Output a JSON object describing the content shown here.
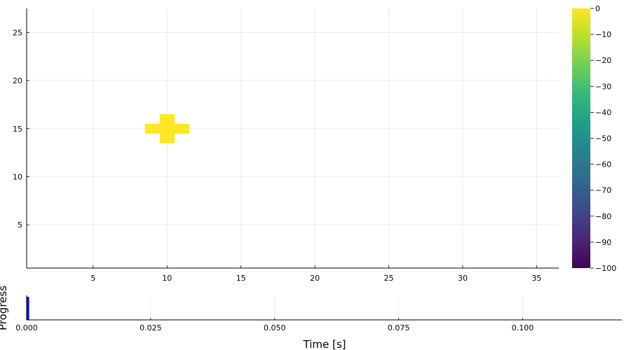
{
  "chart_data": [
    {
      "type": "heatmap",
      "title": "",
      "xlabel": "",
      "ylabel": "",
      "xlim": [
        0.5,
        36.5
      ],
      "ylim": [
        0.5,
        27.5
      ],
      "xticks": [
        5,
        10,
        15,
        20,
        25,
        30,
        35
      ],
      "yticks": [
        5,
        10,
        15,
        20,
        25
      ],
      "grid": true,
      "background_value": null,
      "cells": [
        {
          "x": 10,
          "y": 16,
          "value": 0
        },
        {
          "x": 9,
          "y": 15,
          "value": 0
        },
        {
          "x": 10,
          "y": 15,
          "value": 0
        },
        {
          "x": 11,
          "y": 15,
          "value": 0
        },
        {
          "x": 10,
          "y": 14,
          "value": 0
        }
      ],
      "colorbar": {
        "colormap": "viridis",
        "clim": [
          -100,
          0
        ],
        "ticks": [
          0,
          -10,
          -20,
          -30,
          -40,
          -50,
          -60,
          -70,
          -80,
          -90,
          -100
        ],
        "tick_labels": [
          "0",
          "−10",
          "−20",
          "−30",
          "−40",
          "−50",
          "−60",
          "−70",
          "−80",
          "−90",
          "−100"
        ],
        "stops": [
          "#440154",
          "#482878",
          "#3e4989",
          "#31688e",
          "#26828e",
          "#1f9e89",
          "#35b779",
          "#6ece58",
          "#b5de2b",
          "#fde725"
        ]
      }
    },
    {
      "type": "bar",
      "title": "",
      "xlabel": "Time [s]",
      "ylabel": "Progress",
      "xlim": [
        0,
        0.12
      ],
      "xticks": [
        0.0,
        0.025,
        0.05,
        0.075,
        0.1
      ],
      "xtick_labels": [
        "0.000",
        "0.025",
        "0.050",
        "0.075",
        "0.100"
      ],
      "progress_value": 0.0005,
      "progress_color": "#0000ff",
      "grid": true
    }
  ]
}
